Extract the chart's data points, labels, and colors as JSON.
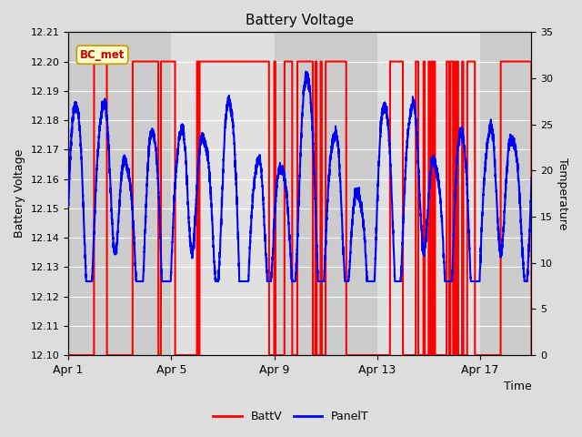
{
  "title": "Battery Voltage",
  "xlabel": "Time",
  "ylabel_left": "Battery Voltage",
  "ylabel_right": "Temperature",
  "ylim_left": [
    12.1,
    12.21
  ],
  "ylim_right": [
    0,
    35
  ],
  "yticks_left": [
    12.1,
    12.11,
    12.12,
    12.13,
    12.14,
    12.15,
    12.16,
    12.17,
    12.18,
    12.19,
    12.2,
    12.21
  ],
  "yticks_right": [
    0,
    5,
    10,
    15,
    20,
    25,
    30,
    35
  ],
  "xtick_labels": [
    "Apr 1",
    "Apr 5",
    "Apr 9",
    "Apr 13",
    "Apr 17"
  ],
  "xtick_positions": [
    0,
    4,
    8,
    12,
    16
  ],
  "xlim": [
    0,
    18
  ],
  "annotation_text": "BC_met",
  "annotation_bg": "#ffffcc",
  "annotation_border": "#cc9900",
  "fig_bg": "#dddddd",
  "plot_bg_dark": "#cccccc",
  "plot_bg_light": "#e8e8e8",
  "grid_color": "#ffffff",
  "batt_color": "#ff0000",
  "panel_color": "#0000ff",
  "band_positions": [
    0,
    4,
    8,
    12,
    16,
    18
  ],
  "batt_low": 12.1,
  "batt_high": 12.2,
  "charge_periods_high": [
    [
      1.0,
      1.5
    ],
    [
      2.5,
      3.5
    ],
    [
      3.6,
      4.0
    ],
    [
      4.0,
      4.15
    ],
    [
      5.0,
      5.05
    ],
    [
      5.1,
      7.8
    ],
    [
      8.0,
      8.05
    ],
    [
      8.4,
      8.7
    ],
    [
      8.9,
      9.5
    ],
    [
      9.6,
      9.65
    ],
    [
      9.8,
      9.85
    ],
    [
      10.0,
      10.8
    ],
    [
      12.5,
      13.0
    ],
    [
      13.5,
      13.6
    ],
    [
      13.8,
      13.85
    ],
    [
      14.0,
      14.05
    ],
    [
      14.1,
      14.15
    ],
    [
      14.2,
      14.25
    ],
    [
      14.7,
      14.8
    ],
    [
      14.85,
      14.95
    ],
    [
      15.0,
      15.05
    ],
    [
      15.1,
      15.15
    ],
    [
      15.3,
      15.35
    ],
    [
      15.5,
      15.8
    ],
    [
      16.8,
      18.0
    ]
  ]
}
